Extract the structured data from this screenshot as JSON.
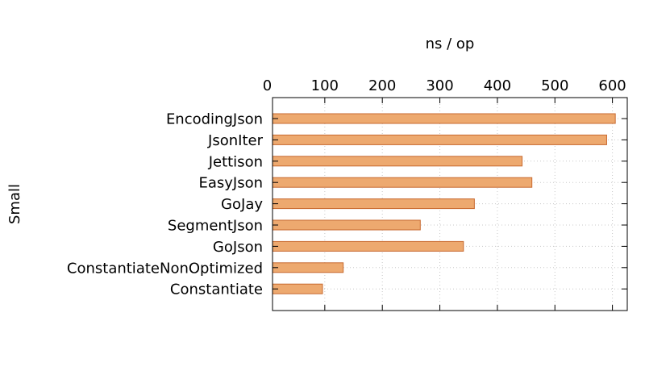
{
  "chart_data": {
    "type": "bar",
    "orientation": "horizontal",
    "xlabel": "ns / op",
    "ylabel": "Small",
    "xlim": [
      0,
      620
    ],
    "x_ticks": [
      0,
      100,
      200,
      300,
      400,
      500,
      600
    ],
    "x_axis_position": "top",
    "grid": true,
    "bar_color": "#eda96f",
    "bar_edge_color": "#c86a30",
    "categories": [
      "EncodingJson",
      "JsonIter",
      "Jettison",
      "EasyJson",
      "GoJay",
      "SegmentJson",
      "GoJson",
      "ConstantiateNonOptimized",
      "Constantiate"
    ],
    "values": [
      605,
      590,
      443,
      460,
      360,
      266,
      341,
      132,
      96
    ]
  }
}
